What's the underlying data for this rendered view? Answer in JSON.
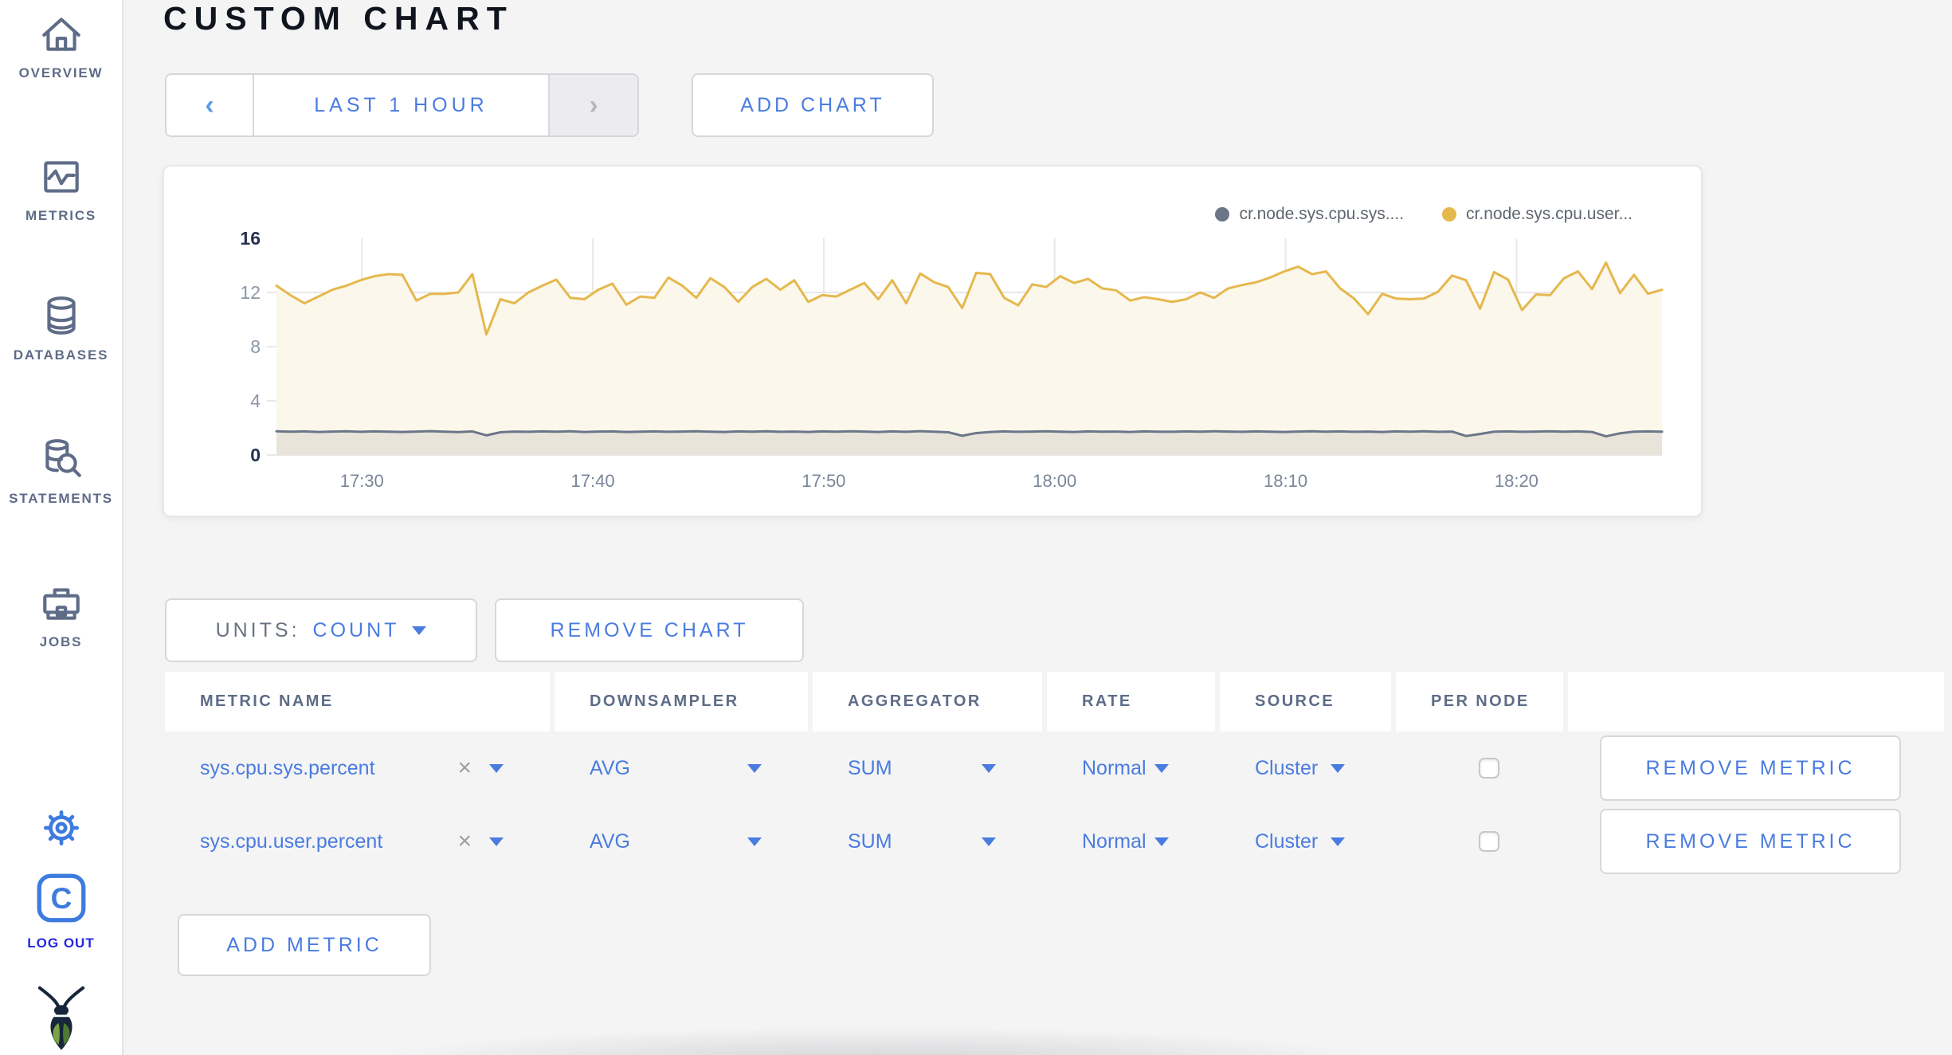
{
  "header": {
    "title": "CUSTOM CHART"
  },
  "toolbar": {
    "time_range_label": "LAST 1 HOUR",
    "add_chart_label": "ADD CHART"
  },
  "sidebar": {
    "items": [
      {
        "label": "OVERVIEW",
        "icon": "home-icon"
      },
      {
        "label": "METRICS",
        "icon": "metrics-graph-icon"
      },
      {
        "label": "DATABASES",
        "icon": "database-icon"
      },
      {
        "label": "STATEMENTS",
        "icon": "database-search-icon"
      },
      {
        "label": "JOBS",
        "icon": "briefcase-icon"
      }
    ],
    "logout_label": "LOG OUT"
  },
  "units_row": {
    "units_label": "UNITS:",
    "units_value": "COUNT",
    "remove_chart_label": "REMOVE CHART"
  },
  "table": {
    "headers": [
      "METRIC NAME",
      "DOWNSAMPLER",
      "AGGREGATOR",
      "RATE",
      "SOURCE",
      "PER NODE"
    ],
    "rows": [
      {
        "metric": "sys.cpu.sys.percent",
        "downsampler": "AVG",
        "aggregator": "SUM",
        "rate": "Normal",
        "source": "Cluster",
        "per_node_checked": false,
        "remove_label": "REMOVE METRIC"
      },
      {
        "metric": "sys.cpu.user.percent",
        "downsampler": "AVG",
        "aggregator": "SUM",
        "rate": "Normal",
        "source": "Cluster",
        "per_node_checked": false,
        "remove_label": "REMOVE METRIC"
      }
    ],
    "add_metric_label": "ADD METRIC"
  },
  "chart_data": {
    "type": "line",
    "title": "",
    "xlabel": "",
    "ylabel": "",
    "ylim": [
      0,
      16
    ],
    "y_ticks": [
      0,
      4,
      8,
      12,
      16
    ],
    "grid": true,
    "legend_position": "top-right",
    "x_domain_minutes": 60,
    "x_ticks": [
      {
        "offset_min": 3.7,
        "label": "17:30"
      },
      {
        "offset_min": 13.7,
        "label": "17:40"
      },
      {
        "offset_min": 23.7,
        "label": "17:50"
      },
      {
        "offset_min": 33.7,
        "label": "18:00"
      },
      {
        "offset_min": 43.7,
        "label": "18:10"
      },
      {
        "offset_min": 53.7,
        "label": "18:20"
      }
    ],
    "series": [
      {
        "name": "cr.node.sys.cpu.sys....",
        "color": "#6b7689",
        "fill": "#e9e4da",
        "values": [
          1.75,
          1.72,
          1.74,
          1.7,
          1.73,
          1.75,
          1.71,
          1.74,
          1.72,
          1.7,
          1.73,
          1.76,
          1.72,
          1.69,
          1.74,
          1.45,
          1.68,
          1.73,
          1.71,
          1.74,
          1.72,
          1.75,
          1.7,
          1.73,
          1.74,
          1.7,
          1.72,
          1.74,
          1.71,
          1.73,
          1.75,
          1.72,
          1.7,
          1.74,
          1.72,
          1.75,
          1.71,
          1.73,
          1.7,
          1.74,
          1.72,
          1.75,
          1.73,
          1.7,
          1.74,
          1.71,
          1.76,
          1.72,
          1.68,
          1.42,
          1.62,
          1.7,
          1.74,
          1.71,
          1.73,
          1.75,
          1.72,
          1.7,
          1.74,
          1.72,
          1.73,
          1.7,
          1.74,
          1.72,
          1.71,
          1.74,
          1.72,
          1.75,
          1.73,
          1.71,
          1.74,
          1.72,
          1.7,
          1.73,
          1.75,
          1.72,
          1.74,
          1.71,
          1.73,
          1.7,
          1.74,
          1.72,
          1.75,
          1.71,
          1.73,
          1.4,
          1.55,
          1.72,
          1.74,
          1.71,
          1.73,
          1.75,
          1.72,
          1.74,
          1.7,
          1.38,
          1.6,
          1.72,
          1.74,
          1.72
        ]
      },
      {
        "name": "cr.node.sys.cpu.user...",
        "color": "#e5b84e",
        "fill": "#fbf7ea",
        "values": [
          12.5,
          11.8,
          11.2,
          11.7,
          12.2,
          12.5,
          12.9,
          13.2,
          13.35,
          13.3,
          11.4,
          11.9,
          11.9,
          12.0,
          13.35,
          8.9,
          11.5,
          11.2,
          12.0,
          12.5,
          12.95,
          11.6,
          11.5,
          12.2,
          12.65,
          11.1,
          11.7,
          11.6,
          13.1,
          12.5,
          11.6,
          13.05,
          12.4,
          11.3,
          12.4,
          13.0,
          12.2,
          12.9,
          11.3,
          11.8,
          11.7,
          12.2,
          12.7,
          11.5,
          12.9,
          11.2,
          13.4,
          12.75,
          12.4,
          10.85,
          13.45,
          13.35,
          11.6,
          11.05,
          12.6,
          12.4,
          13.2,
          12.7,
          13.0,
          12.3,
          12.15,
          11.4,
          11.65,
          11.5,
          11.3,
          11.5,
          12.0,
          11.6,
          12.3,
          12.55,
          12.75,
          13.1,
          13.55,
          13.9,
          13.35,
          13.55,
          12.3,
          11.55,
          10.4,
          11.9,
          11.55,
          11.5,
          11.55,
          12.05,
          13.25,
          12.9,
          10.8,
          13.5,
          12.95,
          10.7,
          11.85,
          11.8,
          13.05,
          13.55,
          12.25,
          14.2,
          11.95,
          13.3,
          11.9,
          12.2
        ]
      }
    ],
    "axis_colors": {
      "major_label": "#25314e",
      "minor_label": "#8d97a8",
      "time_label": "#7a8698",
      "gridline": "#e8e8e8"
    }
  }
}
